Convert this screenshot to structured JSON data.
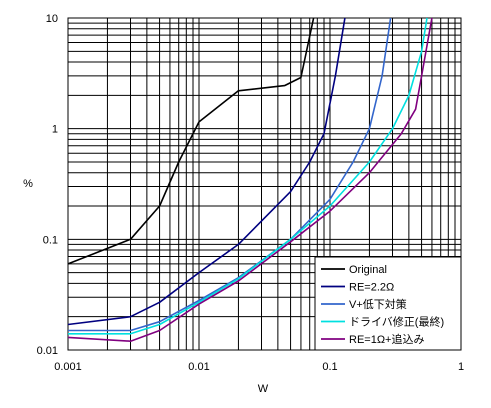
{
  "chart_data": {
    "type": "line",
    "title": "",
    "xlabel": "W",
    "ylabel": "%",
    "x_scale": "log",
    "y_scale": "log",
    "xlim": [
      0.001,
      1
    ],
    "ylim": [
      0.01,
      10
    ],
    "x_ticks": [
      "0.001",
      "0.01",
      "0.1",
      "1"
    ],
    "y_ticks": [
      "0.01",
      "0.1",
      "1",
      "10"
    ],
    "grid": true,
    "legend_position": "bottom-right",
    "series": [
      {
        "name": "Original",
        "color": "#000000",
        "points": [
          [
            0.001,
            0.06
          ],
          [
            0.003,
            0.1
          ],
          [
            0.005,
            0.2
          ],
          [
            0.007,
            0.5
          ],
          [
            0.01,
            1.15
          ],
          [
            0.02,
            2.2
          ],
          [
            0.045,
            2.45
          ],
          [
            0.06,
            2.9
          ],
          [
            0.075,
            10
          ]
        ]
      },
      {
        "name": "RE=2.2Ω",
        "color": "#000080",
        "points": [
          [
            0.001,
            0.017
          ],
          [
            0.003,
            0.02
          ],
          [
            0.005,
            0.027
          ],
          [
            0.01,
            0.05
          ],
          [
            0.02,
            0.09
          ],
          [
            0.05,
            0.27
          ],
          [
            0.07,
            0.5
          ],
          [
            0.09,
            0.9
          ],
          [
            0.11,
            3.0
          ],
          [
            0.13,
            10
          ]
        ]
      },
      {
        "name": "V+低下対策",
        "color": "#3366cc",
        "points": [
          [
            0.001,
            0.015
          ],
          [
            0.003,
            0.015
          ],
          [
            0.005,
            0.018
          ],
          [
            0.01,
            0.028
          ],
          [
            0.02,
            0.045
          ],
          [
            0.05,
            0.1
          ],
          [
            0.1,
            0.23
          ],
          [
            0.15,
            0.5
          ],
          [
            0.2,
            1.0
          ],
          [
            0.25,
            3.0
          ],
          [
            0.29,
            10
          ]
        ]
      },
      {
        "name": "ドライバ修正(最終)",
        "color": "#00e0e0",
        "points": [
          [
            0.001,
            0.014
          ],
          [
            0.003,
            0.014
          ],
          [
            0.005,
            0.017
          ],
          [
            0.01,
            0.027
          ],
          [
            0.02,
            0.044
          ],
          [
            0.05,
            0.1
          ],
          [
            0.1,
            0.2
          ],
          [
            0.2,
            0.5
          ],
          [
            0.3,
            1.0
          ],
          [
            0.4,
            2.0
          ],
          [
            0.5,
            5.0
          ],
          [
            0.55,
            10
          ]
        ]
      },
      {
        "name": "RE=1Ω+追込み",
        "color": "#800080",
        "points": [
          [
            0.001,
            0.013
          ],
          [
            0.003,
            0.012
          ],
          [
            0.005,
            0.015
          ],
          [
            0.01,
            0.026
          ],
          [
            0.02,
            0.042
          ],
          [
            0.05,
            0.095
          ],
          [
            0.1,
            0.18
          ],
          [
            0.2,
            0.4
          ],
          [
            0.35,
            0.9
          ],
          [
            0.45,
            1.5
          ],
          [
            0.5,
            3.0
          ],
          [
            0.6,
            10
          ]
        ]
      }
    ]
  }
}
